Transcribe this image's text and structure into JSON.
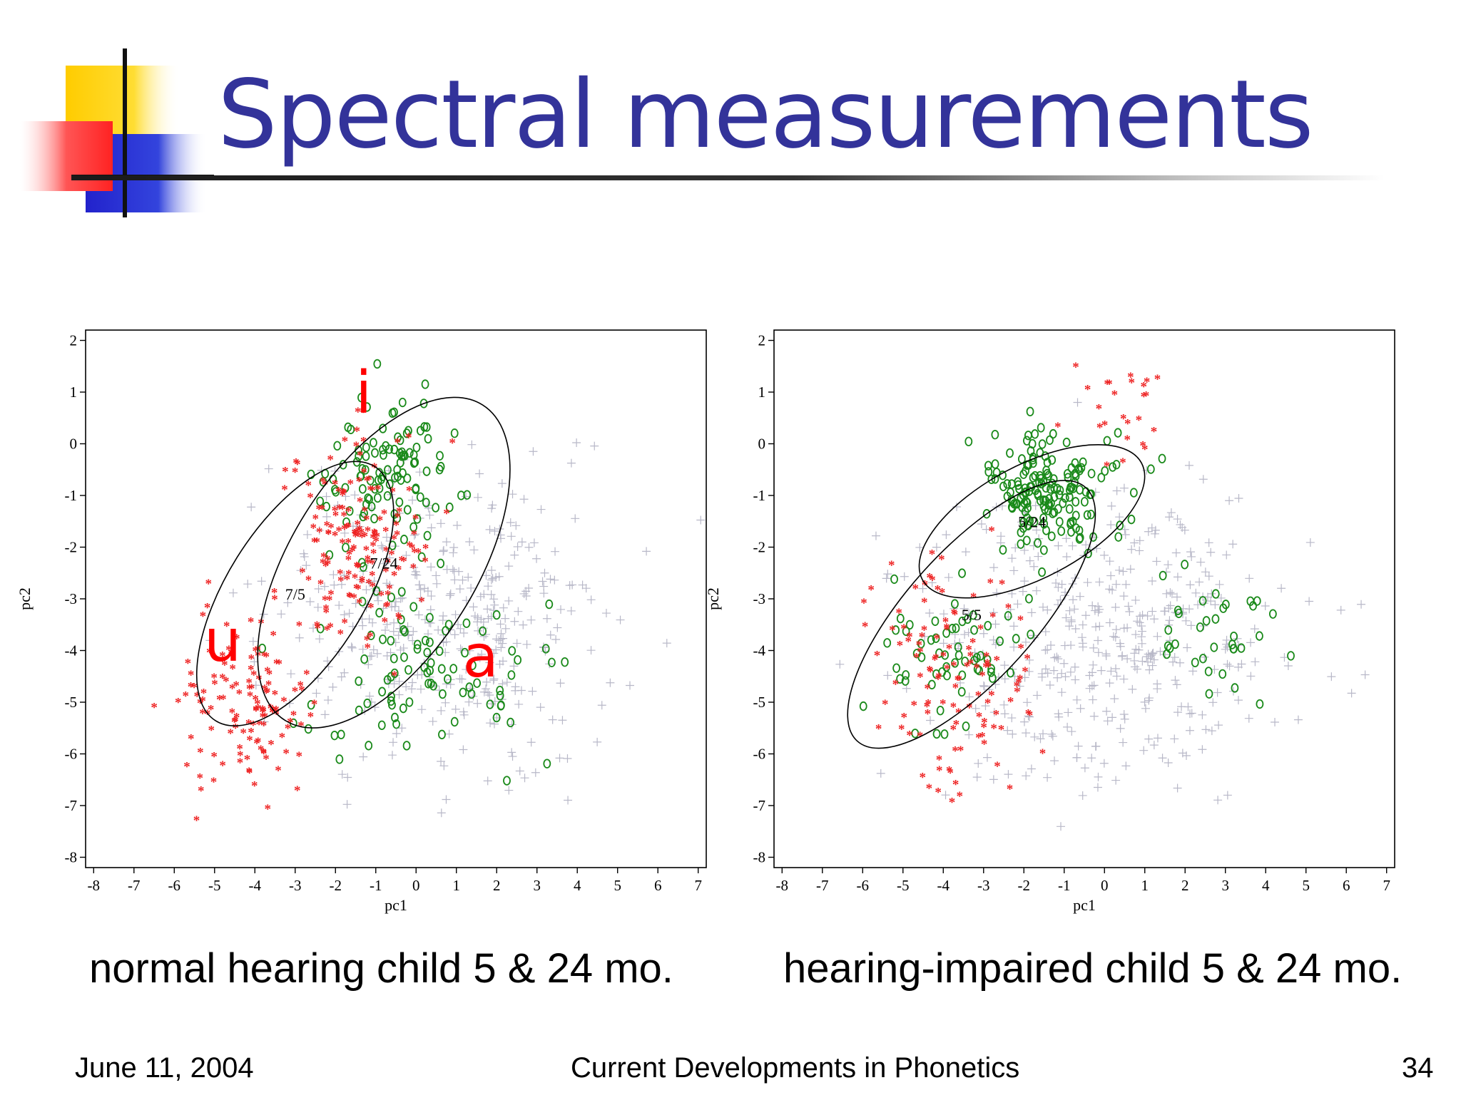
{
  "slide": {
    "title": "Spectral measurements",
    "footer_date": "June 11, 2004",
    "footer_center": "Current Developments in Phonetics",
    "page_number": "34",
    "colors": {
      "title": "#33339a",
      "logo_yellow": "#ffcc00",
      "logo_red": "#ff3333",
      "logo_blue": "#2233cc"
    }
  },
  "chart_data": [
    {
      "type": "scatter",
      "caption": "normal hearing child 5 & 24 mo.",
      "xlabel": "pc1",
      "ylabel": "pc2",
      "xlim": [
        -8,
        7
      ],
      "ylim": [
        -8,
        2
      ],
      "xticks": [
        -8,
        -7,
        -6,
        -5,
        -4,
        -3,
        -2,
        -1,
        0,
        1,
        2,
        3,
        4,
        5,
        6,
        7
      ],
      "yticks": [
        -8,
        -7,
        -6,
        -5,
        -4,
        -3,
        -2,
        -1,
        0,
        1,
        2
      ],
      "grid": false,
      "vowel_labels": [
        {
          "text": "i",
          "x": -1.3,
          "y": 0.6,
          "color": "#ff0000"
        },
        {
          "text": "u",
          "x": -4.8,
          "y": -4.2,
          "color": "#ff0000"
        },
        {
          "text": "a",
          "x": 1.6,
          "y": -4.5,
          "color": "#ff0000"
        }
      ],
      "ellipses": [
        {
          "label": "7/5",
          "cx": -3.0,
          "cy": -2.9,
          "rx": 1.7,
          "ry": 2.9,
          "angle": 32
        },
        {
          "label": "7/24",
          "cx": -0.8,
          "cy": -2.3,
          "rx": 2.3,
          "ry": 3.6,
          "angle": 32
        }
      ],
      "series": [
        {
          "name": "+",
          "marker": "+",
          "color": "#b8b8c8",
          "clusters": [
            {
              "cx": 0.5,
              "cy": -3.3,
              "sx": 3.3,
              "sy": 2.3,
              "n": 400,
              "seed": 101
            }
          ]
        },
        {
          "name": "o",
          "marker": "o",
          "color": "#1a8a1a",
          "clusters": [
            {
              "cx": -0.7,
              "cy": -0.6,
              "sx": 1.3,
              "sy": 1.2,
              "n": 110,
              "seed": 202
            },
            {
              "cx": 0.3,
              "cy": -4.4,
              "sx": 2.5,
              "sy": 1.5,
              "n": 90,
              "seed": 203
            }
          ]
        },
        {
          "name": "*",
          "marker": "*",
          "color": "#ee2222",
          "clusters": [
            {
              "cx": -1.5,
              "cy": -1.8,
              "sx": 1.3,
              "sy": 1.5,
              "n": 170,
              "seed": 303
            },
            {
              "cx": -4.2,
              "cy": -5.0,
              "sx": 1.3,
              "sy": 1.3,
              "n": 130,
              "seed": 304
            }
          ]
        }
      ]
    },
    {
      "type": "scatter",
      "caption": "hearing-impaired child 5 & 24 mo.",
      "xlabel": "pc1",
      "ylabel": "pc2",
      "xlim": [
        -8,
        7
      ],
      "ylim": [
        -8,
        2
      ],
      "xticks": [
        -8,
        -7,
        -6,
        -5,
        -4,
        -3,
        -2,
        -1,
        0,
        1,
        2,
        3,
        4,
        5,
        6,
        7
      ],
      "yticks": [
        -8,
        -7,
        -6,
        -5,
        -4,
        -3,
        -2,
        -1,
        0,
        1,
        2
      ],
      "grid": false,
      "ellipses": [
        {
          "label": "5/5",
          "cx": -3.3,
          "cy": -3.3,
          "rx": 1.6,
          "ry": 3.3,
          "angle": 42
        },
        {
          "label": "5/24",
          "cx": -1.8,
          "cy": -1.5,
          "rx": 1.4,
          "ry": 2.4,
          "angle": 62
        }
      ],
      "series": [
        {
          "name": "+",
          "marker": "+",
          "color": "#b8b8c8",
          "clusters": [
            {
              "cx": 0.0,
              "cy": -3.8,
              "sx": 3.5,
              "sy": 2.2,
              "n": 440,
              "seed": 401
            }
          ]
        },
        {
          "name": "o",
          "marker": "o",
          "color": "#1a8a1a",
          "clusters": [
            {
              "cx": -1.5,
              "cy": -0.9,
              "sx": 1.3,
              "sy": 0.9,
              "n": 170,
              "seed": 502
            },
            {
              "cx": -3.8,
              "cy": -4.1,
              "sx": 1.5,
              "sy": 1.3,
              "n": 60,
              "seed": 503
            },
            {
              "cx": 2.8,
              "cy": -3.6,
              "sx": 1.3,
              "sy": 1.0,
              "n": 35,
              "seed": 504
            }
          ]
        },
        {
          "name": "*",
          "marker": "*",
          "color": "#ee2222",
          "clusters": [
            {
              "cx": -3.7,
              "cy": -4.6,
              "sx": 1.6,
              "sy": 1.7,
              "n": 120,
              "seed": 602
            },
            {
              "cx": 0.3,
              "cy": 0.8,
              "sx": 1.0,
              "sy": 0.8,
              "n": 25,
              "seed": 603
            }
          ]
        }
      ]
    }
  ]
}
